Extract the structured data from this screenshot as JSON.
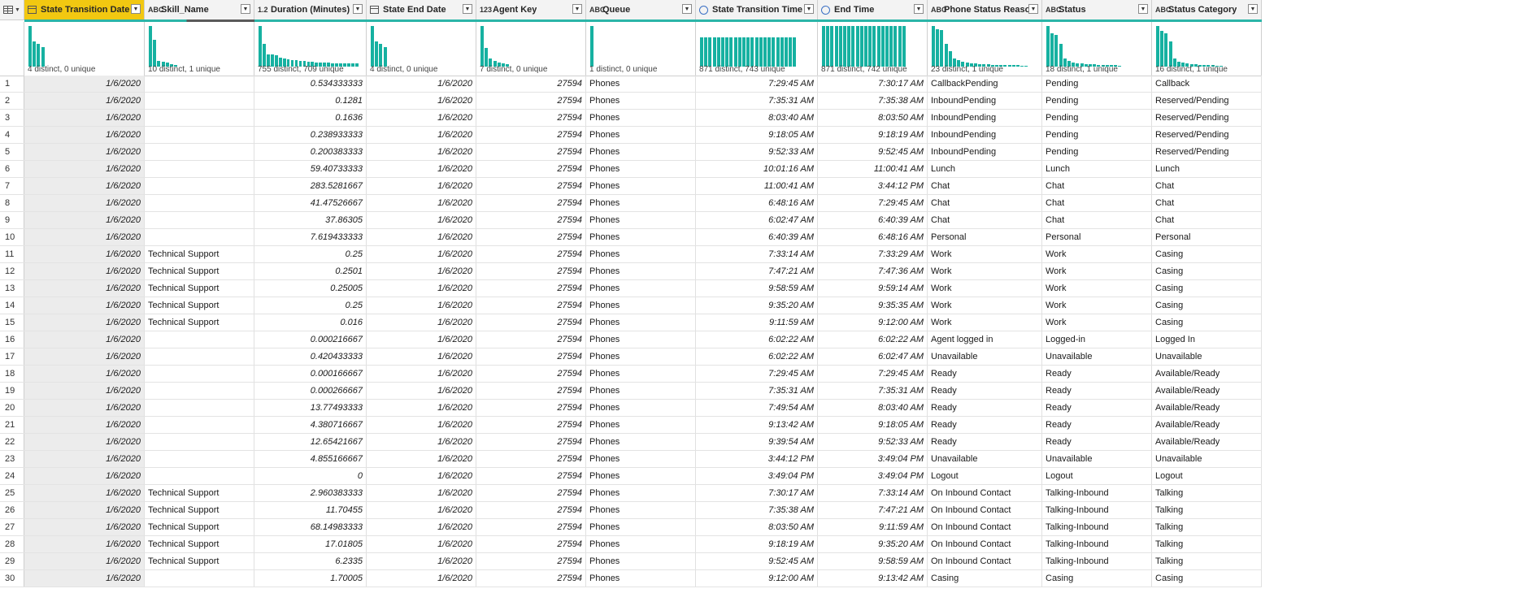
{
  "columns": [
    {
      "key": "c0",
      "type_icon": "calendar-icon",
      "type_label": "",
      "name": "State Transition Date",
      "profile": "4 distinct, 0 unique",
      "align": "r",
      "width": 148,
      "selected": true,
      "bars": [
        1.0,
        0.62,
        0.55,
        0.48
      ]
    },
    {
      "key": "c1",
      "type_icon": "text-type-icon",
      "type_label": "ABC",
      "name": "Skill_Name",
      "profile": "10 distinct, 1 unique",
      "align": "l",
      "width": 135,
      "bars": [
        1.0,
        0.65,
        0.14,
        0.12,
        0.1,
        0.06,
        0.04
      ]
    },
    {
      "key": "c2",
      "type_icon": "decimal-type-icon",
      "type_label": "1.2",
      "name": "Duration (Minutes)",
      "profile": "755 distinct, 709 unique",
      "align": "r",
      "width": 138,
      "bars": [
        1.0,
        0.55,
        0.3,
        0.3,
        0.28,
        0.22,
        0.2,
        0.18,
        0.16,
        0.15,
        0.14,
        0.13,
        0.12,
        0.11,
        0.1,
        0.1,
        0.09,
        0.09,
        0.08,
        0.08,
        0.08,
        0.07,
        0.07,
        0.07,
        0.07
      ]
    },
    {
      "key": "c3",
      "type_icon": "calendar-icon",
      "type_label": "",
      "name": "State End Date",
      "profile": "4 distinct, 0 unique",
      "align": "r",
      "width": 135,
      "bars": [
        1.0,
        0.62,
        0.55,
        0.48
      ]
    },
    {
      "key": "c4",
      "type_icon": "integer-type-icon",
      "type_label": "123",
      "name": "Agent Key",
      "profile": "7 distinct, 0 unique",
      "align": "r",
      "width": 135,
      "bars": [
        1.0,
        0.45,
        0.2,
        0.14,
        0.1,
        0.08,
        0.05
      ]
    },
    {
      "key": "c5",
      "type_icon": "text-type-icon",
      "type_label": "ABC",
      "name": "Queue",
      "profile": "1 distinct, 0 unique",
      "align": "l",
      "width": 135,
      "bars": [
        1.0
      ]
    },
    {
      "key": "c6",
      "type_icon": "clock-icon",
      "type_label": "",
      "name": "State Transition Time",
      "profile": "871 distinct, 743 unique",
      "align": "r",
      "width": 150,
      "bars": [
        0.72,
        0.72,
        0.72,
        0.72,
        0.72,
        0.72,
        0.72,
        0.72,
        0.72,
        0.72,
        0.72,
        0.72,
        0.72,
        0.72,
        0.72,
        0.72,
        0.72,
        0.72,
        0.72,
        0.72,
        0.72,
        0.72,
        0.72
      ]
    },
    {
      "key": "c7",
      "type_icon": "clock-icon",
      "type_label": "",
      "name": "End Time",
      "profile": "871 distinct, 742 unique",
      "align": "r",
      "width": 135,
      "bars": [
        1.0,
        1.0,
        1.0,
        1.0,
        1.0,
        1.0,
        1.0,
        1.0,
        1.0,
        1.0,
        1.0,
        1.0,
        1.0,
        1.0,
        1.0,
        1.0,
        1.0,
        1.0,
        1.0,
        1.0
      ]
    },
    {
      "key": "c8",
      "type_icon": "text-type-icon",
      "type_label": "ABC",
      "name": "Phone Status Reason",
      "profile": "23 distinct, 1 unique",
      "align": "l",
      "width": 141,
      "bars": [
        1.0,
        0.92,
        0.9,
        0.55,
        0.38,
        0.2,
        0.15,
        0.12,
        0.1,
        0.08,
        0.07,
        0.06,
        0.05,
        0.05,
        0.04,
        0.04,
        0.04,
        0.03,
        0.03,
        0.03,
        0.03,
        0.02,
        0.02
      ]
    },
    {
      "key": "c9",
      "type_icon": "text-type-icon",
      "type_label": "ABC",
      "name": "Status",
      "profile": "18 distinct, 1 unique",
      "align": "l",
      "width": 135,
      "bars": [
        1.0,
        0.82,
        0.78,
        0.55,
        0.2,
        0.14,
        0.1,
        0.08,
        0.07,
        0.06,
        0.05,
        0.05,
        0.04,
        0.04,
        0.03,
        0.03,
        0.03,
        0.02
      ]
    },
    {
      "key": "c10",
      "type_icon": "text-type-icon",
      "type_label": "ABC",
      "name": "Status Category",
      "profile": "16 distinct, 1 unique",
      "align": "l",
      "width": 135,
      "bars": [
        1.0,
        0.88,
        0.82,
        0.62,
        0.2,
        0.12,
        0.1,
        0.07,
        0.06,
        0.05,
        0.04,
        0.04,
        0.03,
        0.03,
        0.02,
        0.02
      ]
    }
  ],
  "quality_bar_colors": {
    "valid": "#2bb5a8",
    "empty": "#5a5a5a"
  },
  "rows": [
    [
      "1",
      "1/6/2020",
      "",
      "0.534333333",
      "1/6/2020",
      "27594",
      "Phones",
      "7:29:45 AM",
      "7:30:17 AM",
      "CallbackPending",
      "Pending",
      "Callback"
    ],
    [
      "2",
      "1/6/2020",
      "",
      "0.1281",
      "1/6/2020",
      "27594",
      "Phones",
      "7:35:31 AM",
      "7:35:38 AM",
      "InboundPending",
      "Pending",
      "Reserved/Pending"
    ],
    [
      "3",
      "1/6/2020",
      "",
      "0.1636",
      "1/6/2020",
      "27594",
      "Phones",
      "8:03:40 AM",
      "8:03:50 AM",
      "InboundPending",
      "Pending",
      "Reserved/Pending"
    ],
    [
      "4",
      "1/6/2020",
      "",
      "0.238933333",
      "1/6/2020",
      "27594",
      "Phones",
      "9:18:05 AM",
      "9:18:19 AM",
      "InboundPending",
      "Pending",
      "Reserved/Pending"
    ],
    [
      "5",
      "1/6/2020",
      "",
      "0.200383333",
      "1/6/2020",
      "27594",
      "Phones",
      "9:52:33 AM",
      "9:52:45 AM",
      "InboundPending",
      "Pending",
      "Reserved/Pending"
    ],
    [
      "6",
      "1/6/2020",
      "",
      "59.40733333",
      "1/6/2020",
      "27594",
      "Phones",
      "10:01:16 AM",
      "11:00:41 AM",
      "Lunch",
      "Lunch",
      "Lunch"
    ],
    [
      "7",
      "1/6/2020",
      "",
      "283.5281667",
      "1/6/2020",
      "27594",
      "Phones",
      "11:00:41 AM",
      "3:44:12 PM",
      "Chat",
      "Chat",
      "Chat"
    ],
    [
      "8",
      "1/6/2020",
      "",
      "41.47526667",
      "1/6/2020",
      "27594",
      "Phones",
      "6:48:16 AM",
      "7:29:45 AM",
      "Chat",
      "Chat",
      "Chat"
    ],
    [
      "9",
      "1/6/2020",
      "",
      "37.86305",
      "1/6/2020",
      "27594",
      "Phones",
      "6:02:47 AM",
      "6:40:39 AM",
      "Chat",
      "Chat",
      "Chat"
    ],
    [
      "10",
      "1/6/2020",
      "",
      "7.619433333",
      "1/6/2020",
      "27594",
      "Phones",
      "6:40:39 AM",
      "6:48:16 AM",
      "Personal",
      "Personal",
      "Personal"
    ],
    [
      "11",
      "1/6/2020",
      "Technical Support",
      "0.25",
      "1/6/2020",
      "27594",
      "Phones",
      "7:33:14 AM",
      "7:33:29 AM",
      "Work",
      "Work",
      "Casing"
    ],
    [
      "12",
      "1/6/2020",
      "Technical Support",
      "0.2501",
      "1/6/2020",
      "27594",
      "Phones",
      "7:47:21 AM",
      "7:47:36 AM",
      "Work",
      "Work",
      "Casing"
    ],
    [
      "13",
      "1/6/2020",
      "Technical Support",
      "0.25005",
      "1/6/2020",
      "27594",
      "Phones",
      "9:58:59 AM",
      "9:59:14 AM",
      "Work",
      "Work",
      "Casing"
    ],
    [
      "14",
      "1/6/2020",
      "Technical Support",
      "0.25",
      "1/6/2020",
      "27594",
      "Phones",
      "9:35:20 AM",
      "9:35:35 AM",
      "Work",
      "Work",
      "Casing"
    ],
    [
      "15",
      "1/6/2020",
      "Technical Support",
      "0.016",
      "1/6/2020",
      "27594",
      "Phones",
      "9:11:59 AM",
      "9:12:00 AM",
      "Work",
      "Work",
      "Casing"
    ],
    [
      "16",
      "1/6/2020",
      "",
      "0.000216667",
      "1/6/2020",
      "27594",
      "Phones",
      "6:02:22 AM",
      "6:02:22 AM",
      "Agent logged in",
      "Logged-in",
      "Logged In"
    ],
    [
      "17",
      "1/6/2020",
      "",
      "0.420433333",
      "1/6/2020",
      "27594",
      "Phones",
      "6:02:22 AM",
      "6:02:47 AM",
      "Unavailable",
      "Unavailable",
      "Unavailable"
    ],
    [
      "18",
      "1/6/2020",
      "",
      "0.000166667",
      "1/6/2020",
      "27594",
      "Phones",
      "7:29:45 AM",
      "7:29:45 AM",
      "Ready",
      "Ready",
      "Available/Ready"
    ],
    [
      "19",
      "1/6/2020",
      "",
      "0.000266667",
      "1/6/2020",
      "27594",
      "Phones",
      "7:35:31 AM",
      "7:35:31 AM",
      "Ready",
      "Ready",
      "Available/Ready"
    ],
    [
      "20",
      "1/6/2020",
      "",
      "13.77493333",
      "1/6/2020",
      "27594",
      "Phones",
      "7:49:54 AM",
      "8:03:40 AM",
      "Ready",
      "Ready",
      "Available/Ready"
    ],
    [
      "21",
      "1/6/2020",
      "",
      "4.380716667",
      "1/6/2020",
      "27594",
      "Phones",
      "9:13:42 AM",
      "9:18:05 AM",
      "Ready",
      "Ready",
      "Available/Ready"
    ],
    [
      "22",
      "1/6/2020",
      "",
      "12.65421667",
      "1/6/2020",
      "27594",
      "Phones",
      "9:39:54 AM",
      "9:52:33 AM",
      "Ready",
      "Ready",
      "Available/Ready"
    ],
    [
      "23",
      "1/6/2020",
      "",
      "4.855166667",
      "1/6/2020",
      "27594",
      "Phones",
      "3:44:12 PM",
      "3:49:04 PM",
      "Unavailable",
      "Unavailable",
      "Unavailable"
    ],
    [
      "24",
      "1/6/2020",
      "",
      "0",
      "1/6/2020",
      "27594",
      "Phones",
      "3:49:04 PM",
      "3:49:04 PM",
      "Logout",
      "Logout",
      "Logout"
    ],
    [
      "25",
      "1/6/2020",
      "Technical Support",
      "2.960383333",
      "1/6/2020",
      "27594",
      "Phones",
      "7:30:17 AM",
      "7:33:14 AM",
      "On Inbound Contact",
      "Talking-Inbound",
      "Talking"
    ],
    [
      "26",
      "1/6/2020",
      "Technical Support",
      "11.70455",
      "1/6/2020",
      "27594",
      "Phones",
      "7:35:38 AM",
      "7:47:21 AM",
      "On Inbound Contact",
      "Talking-Inbound",
      "Talking"
    ],
    [
      "27",
      "1/6/2020",
      "Technical Support",
      "68.14983333",
      "1/6/2020",
      "27594",
      "Phones",
      "8:03:50 AM",
      "9:11:59 AM",
      "On Inbound Contact",
      "Talking-Inbound",
      "Talking"
    ],
    [
      "28",
      "1/6/2020",
      "Technical Support",
      "17.01805",
      "1/6/2020",
      "27594",
      "Phones",
      "9:18:19 AM",
      "9:35:20 AM",
      "On Inbound Contact",
      "Talking-Inbound",
      "Talking"
    ],
    [
      "29",
      "1/6/2020",
      "Technical Support",
      "6.2335",
      "1/6/2020",
      "27594",
      "Phones",
      "9:52:45 AM",
      "9:58:59 AM",
      "On Inbound Contact",
      "Talking-Inbound",
      "Talking"
    ],
    [
      "30",
      "1/6/2020",
      "",
      "1.70005",
      "1/6/2020",
      "27594",
      "Phones",
      "9:12:00 AM",
      "9:13:42 AM",
      "Casing",
      "Casing",
      "Casing"
    ]
  ]
}
